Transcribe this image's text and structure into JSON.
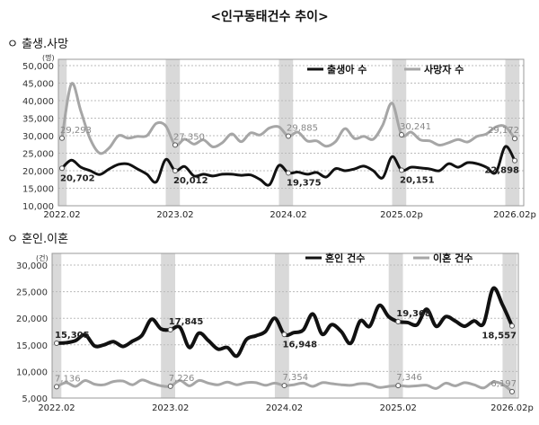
{
  "title": "<인구동태건수 추이>",
  "chart_data": [
    {
      "type": "line",
      "section_title": "ㅇ 출생.사망",
      "unit": "(명)",
      "ylim": [
        10000,
        50000
      ],
      "yticks": [
        "10,000",
        "15,000",
        "20,000",
        "25,000",
        "30,000",
        "35,000",
        "40,000",
        "45,000",
        "50,000"
      ],
      "xticks": [
        "2022.02",
        "2023.02",
        "2024.02",
        "2025.02p",
        "2026.02p"
      ],
      "start": "2022.02",
      "end": "2026.02",
      "grid": true,
      "legend": "top-right",
      "series": [
        {
          "name": "출생아 수",
          "color": "#111111",
          "values": [
            20702,
            23000,
            21000,
            20000,
            18900,
            20500,
            21800,
            21900,
            20500,
            19000,
            16800,
            23200,
            20012,
            21200,
            18500,
            19000,
            18500,
            19000,
            19000,
            18700,
            18800,
            17500,
            16000,
            21500,
            19375,
            19600,
            19000,
            19500,
            18200,
            20600,
            20000,
            20500,
            21300,
            20000,
            18000,
            24000,
            20151,
            21000,
            20800,
            20500,
            20000,
            22000,
            21000,
            22300,
            22000,
            21000,
            19500,
            26900,
            22898
          ],
          "labels": [
            "20,702",
            "20,012",
            "19,375",
            "20,151",
            "22,898"
          ]
        },
        {
          "name": "사망자 수",
          "color": "#a6a6a6",
          "values": [
            29293,
            44800,
            37000,
            29000,
            25000,
            26500,
            30000,
            29300,
            29800,
            30000,
            33500,
            32800,
            27350,
            29000,
            27600,
            28800,
            26800,
            28000,
            30500,
            28300,
            30800,
            30200,
            32200,
            32500,
            29885,
            31000,
            28500,
            28500,
            27000,
            28300,
            32000,
            29200,
            29800,
            29000,
            33000,
            39300,
            30241,
            31000,
            28800,
            28500,
            27300,
            28000,
            28900,
            28200,
            29800,
            30500,
            32500,
            32600,
            29172
          ],
          "labels": [
            "29,293",
            "27,350",
            "29,885",
            "30,241",
            "29,172"
          ]
        }
      ]
    },
    {
      "type": "line",
      "section_title": "ㅇ 혼인.이혼",
      "unit": "(건)",
      "ylim": [
        5000,
        30000
      ],
      "yticks": [
        "5,000",
        "10,000",
        "15,000",
        "20,000",
        "25,000",
        "30,000"
      ],
      "xticks": [
        "2022.02",
        "2023.02",
        "2024.02",
        "2025.02",
        "2026.02p"
      ],
      "start": "2022.02",
      "end": "2026.02",
      "grid": true,
      "legend": "top-right",
      "series": [
        {
          "name": "혼인 건수",
          "color": "#111111",
          "values": [
            15305,
            15400,
            15800,
            16900,
            14800,
            15000,
            15600,
            14700,
            15700,
            16800,
            19800,
            18000,
            17845,
            18300,
            14500,
            17200,
            15800,
            14200,
            14500,
            12900,
            16000,
            16700,
            17500,
            20000,
            16948,
            17300,
            17800,
            20800,
            17000,
            18800,
            17500,
            15300,
            19500,
            18500,
            22400,
            20300,
            19368,
            19200,
            18800,
            21700,
            18500,
            20300,
            19500,
            18500,
            19500,
            19000,
            25600,
            22500,
            18557
          ],
          "labels": [
            "15,305",
            "17,845",
            "16,948",
            "19,368",
            "18,557"
          ]
        },
        {
          "name": "이혼 건수",
          "color": "#a6a6a6",
          "values": [
            7136,
            7900,
            7200,
            8300,
            7600,
            7500,
            8100,
            8200,
            7500,
            8400,
            7800,
            7300,
            7226,
            8300,
            7300,
            8300,
            7800,
            7500,
            8000,
            7500,
            7900,
            7900,
            7400,
            7800,
            7354,
            7500,
            7800,
            7200,
            7900,
            7700,
            7500,
            7400,
            7700,
            7600,
            7000,
            7200,
            7346,
            7200,
            7300,
            7400,
            6800,
            7800,
            7300,
            7900,
            7500,
            6900,
            8000,
            7600,
            6197
          ],
          "labels": [
            "7,136",
            "7,226",
            "7,354",
            "7,346",
            "6,197"
          ]
        }
      ]
    }
  ]
}
